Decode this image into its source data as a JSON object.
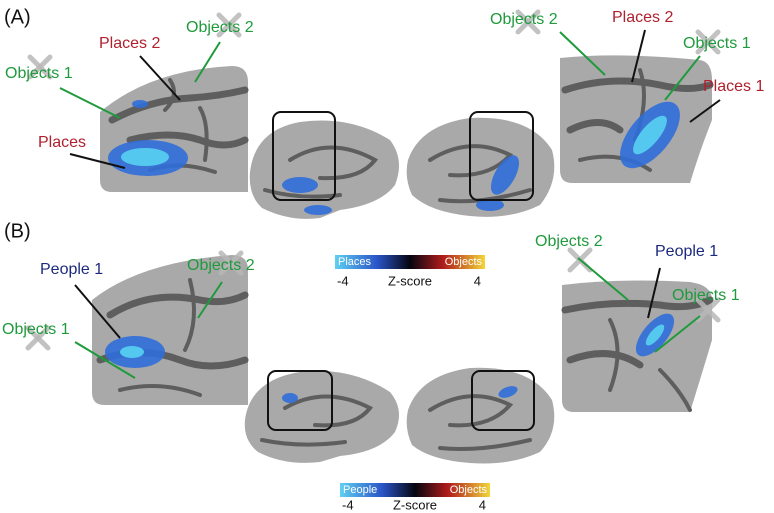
{
  "panels": [
    {
      "label": "(A)",
      "left_annotations": [
        "Objects 1",
        "Places 2",
        "Objects 2",
        "Places"
      ],
      "right_annotations": [
        "Objects 2",
        "Places 2",
        "Objects 1",
        "Places 1"
      ],
      "colorbar": {
        "left": "Places",
        "right": "Objects",
        "title": "Z-score",
        "min": -4,
        "max": 4
      }
    },
    {
      "label": "(B)",
      "left_annotations": [
        "People 1",
        "Objects 2",
        "Objects 1"
      ],
      "right_annotations": [
        "Objects 2",
        "People 1",
        "Objects 1"
      ],
      "colorbar": {
        "left": "People",
        "right": "Objects",
        "title": "Z-score",
        "min": -4,
        "max": 4
      }
    }
  ]
}
